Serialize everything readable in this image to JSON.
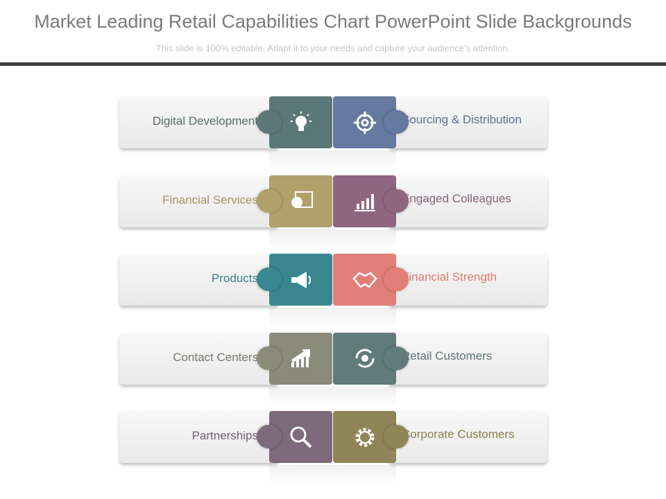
{
  "title": "Market Leading Retail Capabilities Chart PowerPoint Slide Backgrounds",
  "subtitle": "This slide is 100% editable. Adapt it to your needs and capture your audience's attention.",
  "rows": [
    {
      "left": {
        "label": "Digital Development",
        "icon": "lightbulb-icon",
        "color": "#5b7878",
        "text_color": "#5a6a6a"
      },
      "right": {
        "label": "Sourcing & Distribution",
        "icon": "target-icon",
        "color": "#66799f",
        "text_color": "#5f6f8f"
      }
    },
    {
      "left": {
        "label": "Financial Services",
        "icon": "presentation-chart-icon",
        "color": "#b0a06a",
        "text_color": "#a8975e"
      },
      "right": {
        "label": "Engaged Colleagues",
        "icon": "bar-chart-icon",
        "color": "#8e6680",
        "text_color": "#8a6078"
      }
    },
    {
      "left": {
        "label": "Products",
        "icon": "megaphone-icon",
        "color": "#3b8790",
        "text_color": "#3b8088"
      },
      "right": {
        "label": "Financial Strength",
        "icon": "handshake-icon",
        "color": "#e07f78",
        "text_color": "#dd7b72"
      }
    },
    {
      "left": {
        "label": "Contact Centers",
        "icon": "growth-chart-icon",
        "color": "#8b8b7c",
        "text_color": "#777770"
      },
      "right": {
        "label": "Retail Customers",
        "icon": "refresh-gear-icon",
        "color": "#607b78",
        "text_color": "#5d7573"
      }
    },
    {
      "left": {
        "label": "Partnerships",
        "icon": "magnifier-icon",
        "color": "#7d6a7d",
        "text_color": "#706470"
      },
      "right": {
        "label": "Corporate Customers",
        "icon": "gear-icon",
        "color": "#8f8558",
        "text_color": "#8a8050"
      }
    }
  ]
}
